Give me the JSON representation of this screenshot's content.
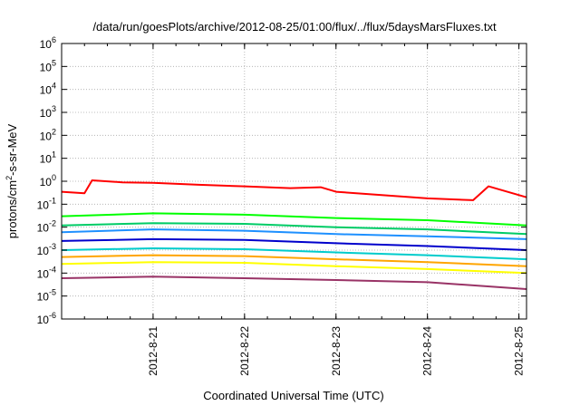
{
  "chart_data": {
    "type": "line",
    "title": "/data/run/goesPlots/archive/2012-08-25/01:00/flux/../flux/5daysMarsFluxes.txt",
    "xlabel": "Coordinated Universal Time (UTC)",
    "ylabel_base": "protons/cm",
    "ylabel_exp": "2",
    "ylabel_tail": "-s-sr-MeV",
    "y_scale": "log",
    "ylim": [
      1e-06,
      1000000.0
    ],
    "xlim": [
      "2012-08-20T00:00",
      "2012-08-25T02:00"
    ],
    "grid": true,
    "legend": "none",
    "y_ticks": [
      {
        "base": "10",
        "exp": "6",
        "value": 1000000.0
      },
      {
        "base": "10",
        "exp": "5",
        "value": 100000.0
      },
      {
        "base": "10",
        "exp": "4",
        "value": 10000.0
      },
      {
        "base": "10",
        "exp": "3",
        "value": 1000.0
      },
      {
        "base": "10",
        "exp": "2",
        "value": 100.0
      },
      {
        "base": "10",
        "exp": "1",
        "value": 10.0
      },
      {
        "base": "10",
        "exp": "0",
        "value": 1.0
      },
      {
        "base": "10",
        "exp": "-1",
        "value": 0.1
      },
      {
        "base": "10",
        "exp": "-2",
        "value": 0.01
      },
      {
        "base": "10",
        "exp": "-3",
        "value": 0.001
      },
      {
        "base": "10",
        "exp": "-4",
        "value": 0.0001
      },
      {
        "base": "10",
        "exp": "-5",
        "value": 1e-05
      },
      {
        "base": "10",
        "exp": "-6",
        "value": 1e-06
      }
    ],
    "x_ticks": [
      {
        "label": "2012-8-21",
        "value": "2012-08-21T00:00"
      },
      {
        "label": "2012-8-22",
        "value": "2012-08-22T00:00"
      },
      {
        "label": "2012-8-23",
        "value": "2012-08-23T00:00"
      },
      {
        "label": "2012-8-24",
        "value": "2012-08-24T00:00"
      },
      {
        "label": "2012-8-25",
        "value": "2012-08-25T00:00"
      }
    ],
    "series": [
      {
        "color": "#ff0000",
        "x": [
          "2012-08-20T00:00",
          "2012-08-20T06:00",
          "2012-08-20T08:00",
          "2012-08-20T16:00",
          "2012-08-21T00:00",
          "2012-08-21T12:00",
          "2012-08-22T00:00",
          "2012-08-22T12:00",
          "2012-08-22T20:00",
          "2012-08-23T00:00",
          "2012-08-23T12:00",
          "2012-08-24T00:00",
          "2012-08-24T12:00",
          "2012-08-24T16:00",
          "2012-08-25T02:00"
        ],
        "values": [
          0.35,
          0.3,
          1.1,
          0.9,
          0.85,
          0.7,
          0.6,
          0.5,
          0.55,
          0.35,
          0.25,
          0.18,
          0.15,
          0.6,
          0.2
        ]
      },
      {
        "color": "#00ff00",
        "x": [
          "2012-08-20T00:00",
          "2012-08-21T00:00",
          "2012-08-22T00:00",
          "2012-08-23T00:00",
          "2012-08-24T00:00",
          "2012-08-25T02:00"
        ],
        "values": [
          0.03,
          0.04,
          0.035,
          0.025,
          0.02,
          0.012
        ]
      },
      {
        "color": "#00cc66",
        "x": [
          "2012-08-20T00:00",
          "2012-08-21T00:00",
          "2012-08-22T00:00",
          "2012-08-23T00:00",
          "2012-08-24T00:00",
          "2012-08-25T02:00"
        ],
        "values": [
          0.012,
          0.015,
          0.014,
          0.01,
          0.008,
          0.005
        ]
      },
      {
        "color": "#1e90ff",
        "x": [
          "2012-08-20T00:00",
          "2012-08-21T00:00",
          "2012-08-22T00:00",
          "2012-08-23T00:00",
          "2012-08-24T00:00",
          "2012-08-25T02:00"
        ],
        "values": [
          0.006,
          0.008,
          0.007,
          0.005,
          0.004,
          0.003
        ]
      },
      {
        "color": "#0000cc",
        "x": [
          "2012-08-20T00:00",
          "2012-08-21T00:00",
          "2012-08-22T00:00",
          "2012-08-23T00:00",
          "2012-08-24T00:00",
          "2012-08-25T02:00"
        ],
        "values": [
          0.0025,
          0.003,
          0.0028,
          0.002,
          0.0015,
          0.001
        ]
      },
      {
        "color": "#00cccc",
        "x": [
          "2012-08-20T00:00",
          "2012-08-21T00:00",
          "2012-08-22T00:00",
          "2012-08-23T00:00",
          "2012-08-24T00:00",
          "2012-08-25T02:00"
        ],
        "values": [
          0.001,
          0.0012,
          0.0011,
          0.0008,
          0.0006,
          0.0004
        ]
      },
      {
        "color": "#ffa500",
        "x": [
          "2012-08-20T00:00",
          "2012-08-21T00:00",
          "2012-08-22T00:00",
          "2012-08-23T00:00",
          "2012-08-24T00:00",
          "2012-08-25T02:00"
        ],
        "values": [
          0.0005,
          0.0006,
          0.00055,
          0.0004,
          0.0003,
          0.0002
        ]
      },
      {
        "color": "#ffff00",
        "x": [
          "2012-08-20T00:00",
          "2012-08-21T00:00",
          "2012-08-22T00:00",
          "2012-08-23T00:00",
          "2012-08-24T00:00",
          "2012-08-25T02:00"
        ],
        "values": [
          0.00025,
          0.0003,
          0.00028,
          0.0002,
          0.00015,
          0.0001
        ]
      },
      {
        "color": "#993366",
        "x": [
          "2012-08-20T00:00",
          "2012-08-21T00:00",
          "2012-08-22T00:00",
          "2012-08-23T00:00",
          "2012-08-24T00:00",
          "2012-08-25T02:00"
        ],
        "values": [
          6e-05,
          7e-05,
          6e-05,
          5e-05,
          4e-05,
          2e-05
        ]
      }
    ]
  }
}
